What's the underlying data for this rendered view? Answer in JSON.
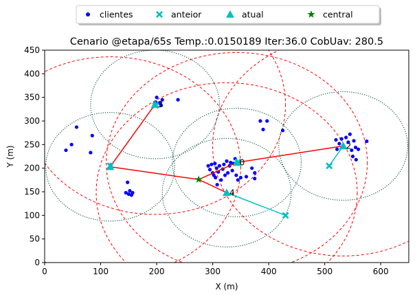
{
  "chart_data": {
    "type": "scatter",
    "title": "Cenario @etapa/65s Temp.:0.0150189 Iter:36.0 CobUav: 280.5",
    "xlabel": "X (m)",
    "ylabel": "Y (m)",
    "xlim": [
      0,
      650
    ],
    "ylim": [
      0,
      450
    ],
    "xticks": [
      0,
      100,
      200,
      300,
      400,
      500,
      600
    ],
    "yticks": [
      0,
      50,
      100,
      150,
      200,
      250,
      300,
      350,
      400,
      450
    ],
    "legend": {
      "placement": "top-center",
      "entries": [
        {
          "label": "clientes",
          "marker": "circle",
          "color": "#0000ff"
        },
        {
          "label": "anteior",
          "marker": "x",
          "color": "#00bfbf"
        },
        {
          "label": "atual",
          "marker": "triangle",
          "color": "#00bfbf"
        },
        {
          "label": "central",
          "marker": "star",
          "color": "#008000"
        }
      ]
    },
    "colors": {
      "clientes": "#0000ff",
      "anteior": "#00bfbf",
      "atual": "#00bfbf",
      "central": "#008000",
      "links": "#ff0000",
      "moves": "#00bfbf",
      "coverage": "#004d40",
      "range": "#ff0000"
    },
    "clientes": [
      [
        38,
        238
      ],
      [
        48,
        250
      ],
      [
        57,
        287
      ],
      [
        82,
        233
      ],
      [
        85,
        269
      ],
      [
        118,
        207
      ],
      [
        145,
        148
      ],
      [
        148,
        170
      ],
      [
        150,
        145
      ],
      [
        152,
        152
      ],
      [
        155,
        143
      ],
      [
        157,
        148
      ],
      [
        198,
        340
      ],
      [
        200,
        350
      ],
      [
        205,
        338
      ],
      [
        208,
        333
      ],
      [
        210,
        345
      ],
      [
        238,
        345
      ],
      [
        292,
        205
      ],
      [
        295,
        197
      ],
      [
        298,
        208
      ],
      [
        300,
        190
      ],
      [
        302,
        185
      ],
      [
        304,
        210
      ],
      [
        305,
        180
      ],
      [
        307,
        200
      ],
      [
        308,
        165
      ],
      [
        310,
        192
      ],
      [
        312,
        205
      ],
      [
        315,
        175
      ],
      [
        318,
        198
      ],
      [
        320,
        208
      ],
      [
        322,
        185
      ],
      [
        325,
        215
      ],
      [
        327,
        190
      ],
      [
        330,
        205
      ],
      [
        332,
        212
      ],
      [
        335,
        195
      ],
      [
        337,
        210
      ],
      [
        340,
        220
      ],
      [
        342,
        185
      ],
      [
        345,
        175
      ],
      [
        350,
        180
      ],
      [
        360,
        182
      ],
      [
        370,
        200
      ],
      [
        375,
        190
      ],
      [
        375,
        178
      ],
      [
        385,
        300
      ],
      [
        390,
        282
      ],
      [
        397,
        300
      ],
      [
        425,
        280
      ],
      [
        520,
        260
      ],
      [
        522,
        240
      ],
      [
        526,
        252
      ],
      [
        530,
        262
      ],
      [
        533,
        248
      ],
      [
        538,
        265
      ],
      [
        542,
        255
      ],
      [
        545,
        272
      ],
      [
        548,
        238
      ],
      [
        550,
        225
      ],
      [
        552,
        258
      ],
      [
        555,
        244
      ],
      [
        556,
        218
      ],
      [
        560,
        240
      ],
      [
        575,
        257
      ]
    ],
    "anteior": [
      {
        "id": "3",
        "x": 198,
        "y": 333
      },
      {
        "id": "",
        "x": 117,
        "y": 205
      },
      {
        "id": "0",
        "x": 345,
        "y": 213
      },
      {
        "id": "4",
        "x": 430,
        "y": 100
      },
      {
        "id": "2",
        "x": 508,
        "y": 205
      }
    ],
    "atual": [
      {
        "id": "3",
        "x": 197,
        "y": 335
      },
      {
        "id": "",
        "x": 117,
        "y": 203
      },
      {
        "id": "0",
        "x": 343,
        "y": 212
      },
      {
        "id": "4",
        "x": 325,
        "y": 148
      },
      {
        "id": "2",
        "x": 533,
        "y": 247
      }
    ],
    "central": {
      "x": 275,
      "y": 176
    },
    "links": [
      [
        [
          197,
          335
        ],
        [
          117,
          203
        ]
      ],
      [
        [
          117,
          203
        ],
        [
          275,
          176
        ]
      ],
      [
        [
          275,
          176
        ],
        [
          343,
          212
        ]
      ],
      [
        [
          343,
          212
        ],
        [
          533,
          247
        ]
      ],
      [
        [
          275,
          176
        ],
        [
          325,
          148
        ]
      ]
    ],
    "moves": [
      [
        [
          430,
          100
        ],
        [
          325,
          148
        ]
      ],
      [
        [
          508,
          205
        ],
        [
          533,
          247
        ]
      ]
    ],
    "coverage_circles": [
      {
        "cx": 197,
        "cy": 335,
        "r": 115
      },
      {
        "cx": 117,
        "cy": 203,
        "r": 115
      },
      {
        "cx": 343,
        "cy": 212,
        "r": 115
      },
      {
        "cx": 325,
        "cy": 148,
        "r": 115
      },
      {
        "cx": 533,
        "cy": 247,
        "r": 115
      }
    ],
    "range_circles": [
      {
        "cx": 197,
        "cy": 335,
        "r": 233
      },
      {
        "cx": 117,
        "cy": 203,
        "r": 233
      },
      {
        "cx": 343,
        "cy": 212,
        "r": 233
      },
      {
        "cx": 325,
        "cy": 148,
        "r": 233
      },
      {
        "cx": 533,
        "cy": 247,
        "r": 233
      }
    ]
  }
}
